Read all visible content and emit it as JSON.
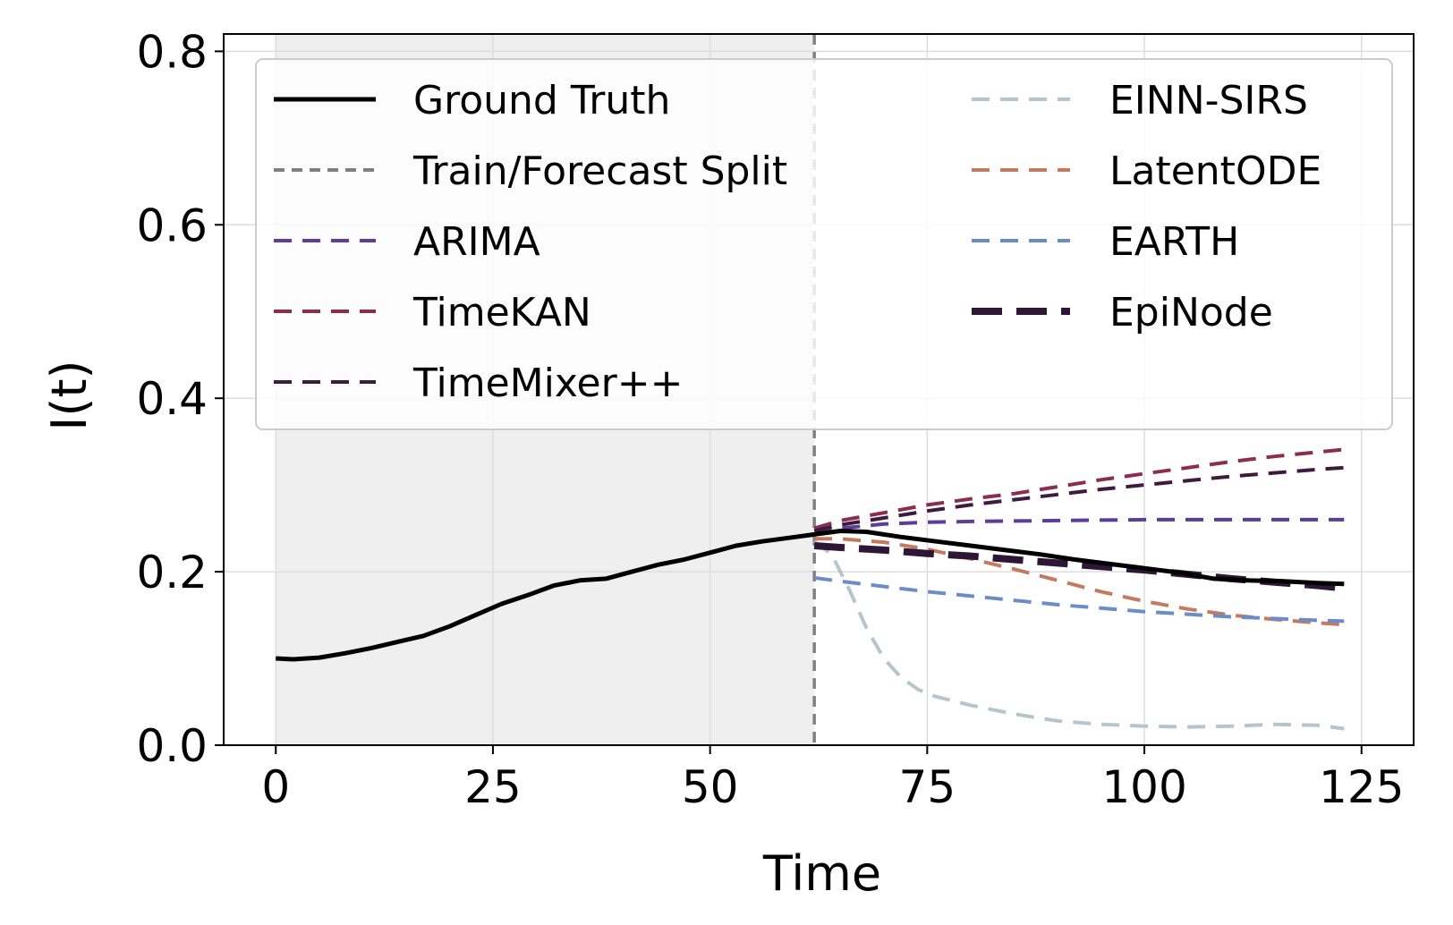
{
  "chart_data": {
    "type": "line",
    "xlabel": "Time",
    "ylabel": "I(t)",
    "xlim": [
      -6,
      131
    ],
    "ylim": [
      0.0,
      0.82
    ],
    "xticks": [
      0,
      25,
      50,
      75,
      100,
      125
    ],
    "xtick_labels": [
      "0",
      "25",
      "50",
      "75",
      "100",
      "125"
    ],
    "yticks": [
      0.0,
      0.2,
      0.4,
      0.6,
      0.8
    ],
    "ytick_labels": [
      "0.0",
      "0.2",
      "0.4",
      "0.6",
      "0.8"
    ],
    "grid": true,
    "shaded_region": {
      "x_start": 0,
      "x_end": 62,
      "color": "#efefef"
    },
    "split_x": 62,
    "legend_position": "top",
    "series": [
      {
        "name": "Ground Truth",
        "color": "#000000",
        "style": "solid",
        "width": "thick",
        "x": [
          0,
          2,
          5,
          8,
          11,
          14,
          17,
          20,
          23,
          26,
          29,
          32,
          35,
          38,
          41,
          44,
          47,
          50,
          53,
          56,
          59,
          62,
          65,
          68,
          72,
          76,
          80,
          84,
          88,
          92,
          96,
          100,
          104,
          108,
          112,
          116,
          120,
          123
        ],
        "y": [
          0.1,
          0.099,
          0.101,
          0.106,
          0.112,
          0.119,
          0.126,
          0.137,
          0.15,
          0.163,
          0.173,
          0.184,
          0.19,
          0.192,
          0.2,
          0.208,
          0.214,
          0.222,
          0.23,
          0.235,
          0.239,
          0.243,
          0.247,
          0.246,
          0.24,
          0.235,
          0.23,
          0.225,
          0.22,
          0.214,
          0.209,
          0.204,
          0.199,
          0.192,
          0.19,
          0.189,
          0.187,
          0.186
        ]
      },
      {
        "name": "Train/Forecast Split",
        "color": "#808080",
        "style": "dashed",
        "width": "thin",
        "x": [],
        "y": []
      },
      {
        "name": "ARIMA",
        "color": "#5e3c99",
        "style": "dashed",
        "width": "thin",
        "x": [
          62,
          65,
          70,
          75,
          80,
          90,
          100,
          110,
          123
        ],
        "y": [
          0.243,
          0.25,
          0.255,
          0.257,
          0.258,
          0.259,
          0.26,
          0.26,
          0.26
        ]
      },
      {
        "name": "TimeKAN",
        "color": "#8c2d4c",
        "style": "dashed",
        "width": "thin",
        "x": [
          62,
          65,
          70,
          75,
          80,
          85,
          90,
          95,
          100,
          105,
          110,
          115,
          120,
          123
        ],
        "y": [
          0.25,
          0.259,
          0.268,
          0.277,
          0.284,
          0.29,
          0.298,
          0.306,
          0.313,
          0.32,
          0.327,
          0.333,
          0.338,
          0.341
        ]
      },
      {
        "name": "TimeMixer++",
        "color": "#3f1a3f",
        "style": "dashed",
        "width": "thin",
        "x": [
          62,
          65,
          70,
          75,
          80,
          85,
          90,
          95,
          100,
          105,
          110,
          115,
          120,
          123
        ],
        "y": [
          0.247,
          0.254,
          0.262,
          0.27,
          0.277,
          0.283,
          0.289,
          0.295,
          0.3,
          0.305,
          0.31,
          0.314,
          0.318,
          0.32
        ]
      },
      {
        "name": "EINN-SIRS",
        "color": "#b4c5cd",
        "style": "dashed",
        "width": "thin",
        "x": [
          62,
          64,
          66,
          68,
          70,
          72,
          74,
          76,
          80,
          85,
          90,
          95,
          100,
          105,
          110,
          115,
          120,
          123
        ],
        "y": [
          0.235,
          0.22,
          0.18,
          0.135,
          0.1,
          0.078,
          0.064,
          0.056,
          0.046,
          0.036,
          0.028,
          0.024,
          0.022,
          0.021,
          0.022,
          0.024,
          0.023,
          0.019
        ]
      },
      {
        "name": "LatentODE",
        "color": "#c47a5e",
        "style": "dashed",
        "width": "thin",
        "x": [
          62,
          65,
          70,
          75,
          80,
          85,
          90,
          95,
          100,
          105,
          110,
          115,
          120,
          123
        ],
        "y": [
          0.238,
          0.238,
          0.234,
          0.226,
          0.215,
          0.203,
          0.19,
          0.177,
          0.166,
          0.157,
          0.15,
          0.145,
          0.141,
          0.139
        ]
      },
      {
        "name": "EARTH",
        "color": "#6b8cc7",
        "style": "dashed",
        "width": "thin",
        "x": [
          62,
          65,
          70,
          75,
          80,
          85,
          90,
          95,
          100,
          105,
          110,
          115,
          120,
          123
        ],
        "y": [
          0.193,
          0.189,
          0.183,
          0.177,
          0.172,
          0.167,
          0.162,
          0.158,
          0.154,
          0.151,
          0.148,
          0.146,
          0.144,
          0.143
        ]
      },
      {
        "name": "EpiNode",
        "color": "#2d1636",
        "style": "dashed",
        "width": "thick",
        "x": [
          62,
          65,
          70,
          75,
          80,
          85,
          90,
          95,
          100,
          105,
          110,
          115,
          120,
          123
        ],
        "y": [
          0.23,
          0.228,
          0.225,
          0.221,
          0.218,
          0.214,
          0.21,
          0.206,
          0.202,
          0.197,
          0.192,
          0.188,
          0.184,
          0.181
        ]
      }
    ],
    "legend_columns": [
      [
        "Ground Truth",
        "Train/Forecast Split",
        "ARIMA",
        "TimeKAN",
        "TimeMixer++"
      ],
      [
        "EINN-SIRS",
        "LatentODE",
        "EARTH",
        "EpiNode"
      ]
    ]
  }
}
